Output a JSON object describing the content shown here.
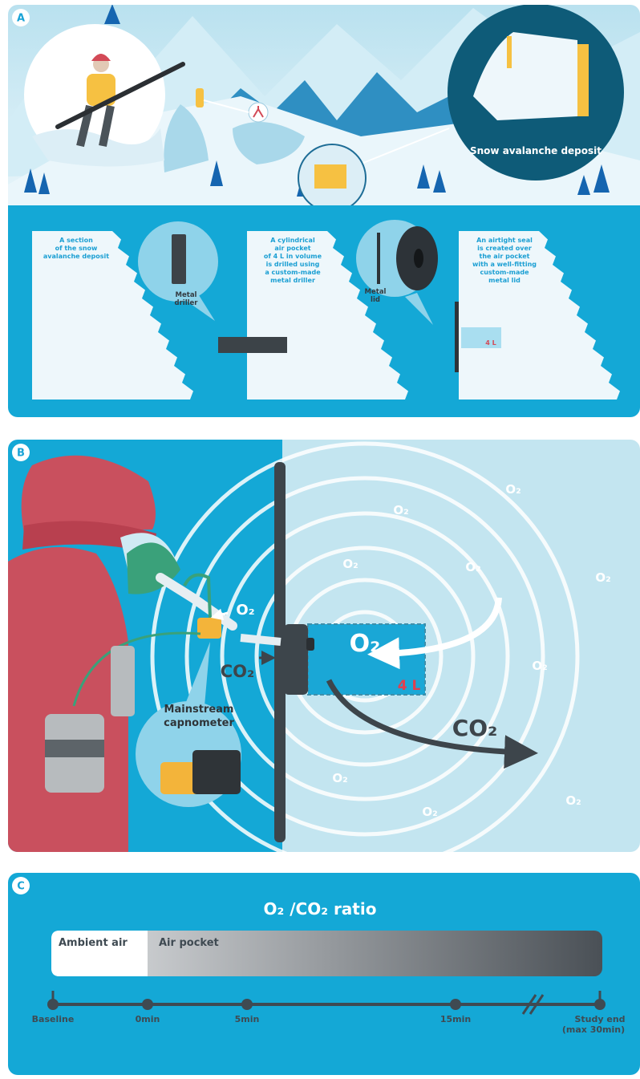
{
  "panel_a": {
    "label": "A",
    "deposit_label": "Snow avalanche deposit",
    "steps": [
      {
        "text": [
          "A section",
          "of the snow",
          "avalanche deposit"
        ]
      },
      {
        "callout": [
          "Metal",
          "driller"
        ],
        "text": [
          "A cylindrical",
          "air pocket",
          "of 4 L in volume",
          "is drilled using",
          "a custom-made",
          "metal driller"
        ]
      },
      {
        "callout": [
          "Metal",
          "lid"
        ],
        "text": [
          "An airtight seal",
          "is created over",
          "the air pocket",
          "with a well-fitting",
          "custom-made",
          "metal lid"
        ],
        "volume": "4 L"
      }
    ]
  },
  "panel_b": {
    "label": "B",
    "inhaled": "O₂",
    "exhaled": "CO₂",
    "pocket_gas": "O₂",
    "pocket_volume": "4 L",
    "out_gas": "CO₂",
    "device": [
      "Mainstream",
      "capnometer"
    ],
    "snow_gas": [
      "O₂",
      "O₂",
      "O₂",
      "O₂",
      "O₂",
      "O₂",
      "O₂",
      "O₂",
      "O₂"
    ]
  },
  "panel_c": {
    "label": "C",
    "title": "O₂ /CO₂ ratio",
    "phases": [
      "Ambient air",
      "Air pocket"
    ],
    "timeline": {
      "points": [
        "Baseline",
        "0min",
        "5min",
        "15min"
      ],
      "end": [
        "Study end",
        "(max 30min)"
      ]
    }
  }
}
